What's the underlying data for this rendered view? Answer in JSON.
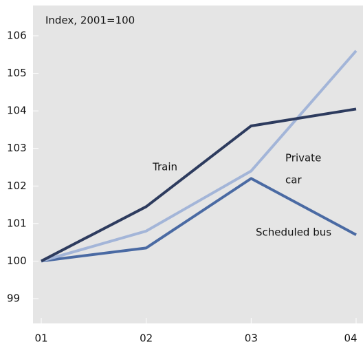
{
  "chart_data": {
    "type": "line",
    "ylabel": "Index, 2001=100",
    "categories": [
      "01",
      "02",
      "03",
      "04"
    ],
    "series": [
      {
        "name": "Train",
        "color": "#2d3b5e",
        "values": [
          100,
          101.45,
          103.6,
          104.05
        ]
      },
      {
        "name": "Private car",
        "color": "#a3b5d8",
        "values": [
          100,
          100.8,
          102.4,
          105.6
        ]
      },
      {
        "name": "Scheduled bus",
        "color": "#4a6aa3",
        "values": [
          100,
          100.35,
          102.2,
          100.7
        ]
      }
    ],
    "annotations": [
      {
        "lines": [
          "Train"
        ]
      },
      {
        "lines": [
          "Private",
          "car"
        ]
      },
      {
        "lines": [
          "Scheduled bus"
        ]
      }
    ],
    "ylim": [
      99,
      106
    ],
    "yticks": [
      99,
      100,
      101,
      102,
      103,
      104,
      105,
      106
    ]
  }
}
